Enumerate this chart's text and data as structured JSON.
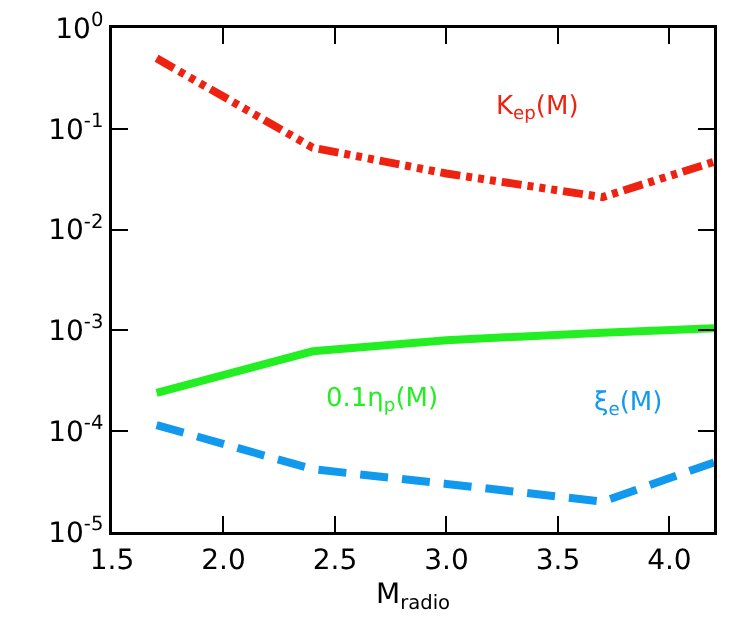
{
  "chart_data": {
    "type": "line",
    "xlabel": "M$_{radio}$",
    "log": "y",
    "grid": false,
    "legend": false,
    "marker": "none",
    "xlim": [
      1.5,
      4.2
    ],
    "xticks": [
      1.5,
      {
        "value": 2,
        "label": "2.0"
      },
      2.5,
      {
        "value": 3,
        "label": "3.0"
      },
      3.5,
      {
        "value": 4,
        "label": "4.0"
      }
    ],
    "ylim": [
      1e-05,
      1
    ],
    "yticks": [
      {
        "value": 1e-05,
        "label": "10$^{-5}$"
      },
      {
        "value": 0.0001,
        "label": "10$^{-4}$"
      },
      {
        "value": 0.001,
        "label": "10$^{-3}$"
      },
      {
        "value": 0.01,
        "label": "10$^{-2}$"
      },
      {
        "value": 0.1,
        "label": "10$^{-1}$"
      },
      {
        "value": 1,
        "label": "10$^{0}$"
      }
    ],
    "x": [
      1.7,
      2.4,
      3.0,
      3.7,
      4.2
    ],
    "series": [
      {
        "name": "K$_{ep}$(M)",
        "color": "#ee2211",
        "line_style": "dashdot",
        "values": [
          0.5,
          0.065,
          0.036,
          0.021,
          0.047
        ]
      },
      {
        "name": "0.1η$_{p}$(M)",
        "color": "#22ee22",
        "line_style": "solid",
        "values": [
          0.00024,
          0.00062,
          0.0008,
          0.00095,
          0.00105
        ]
      },
      {
        "name": "ξ$_{e}$(M)",
        "color": "#1199ee",
        "line_style": "dashed",
        "values": [
          0.000115,
          4.2e-05,
          3e-05,
          2e-05,
          4.9e-05
        ]
      }
    ]
  }
}
